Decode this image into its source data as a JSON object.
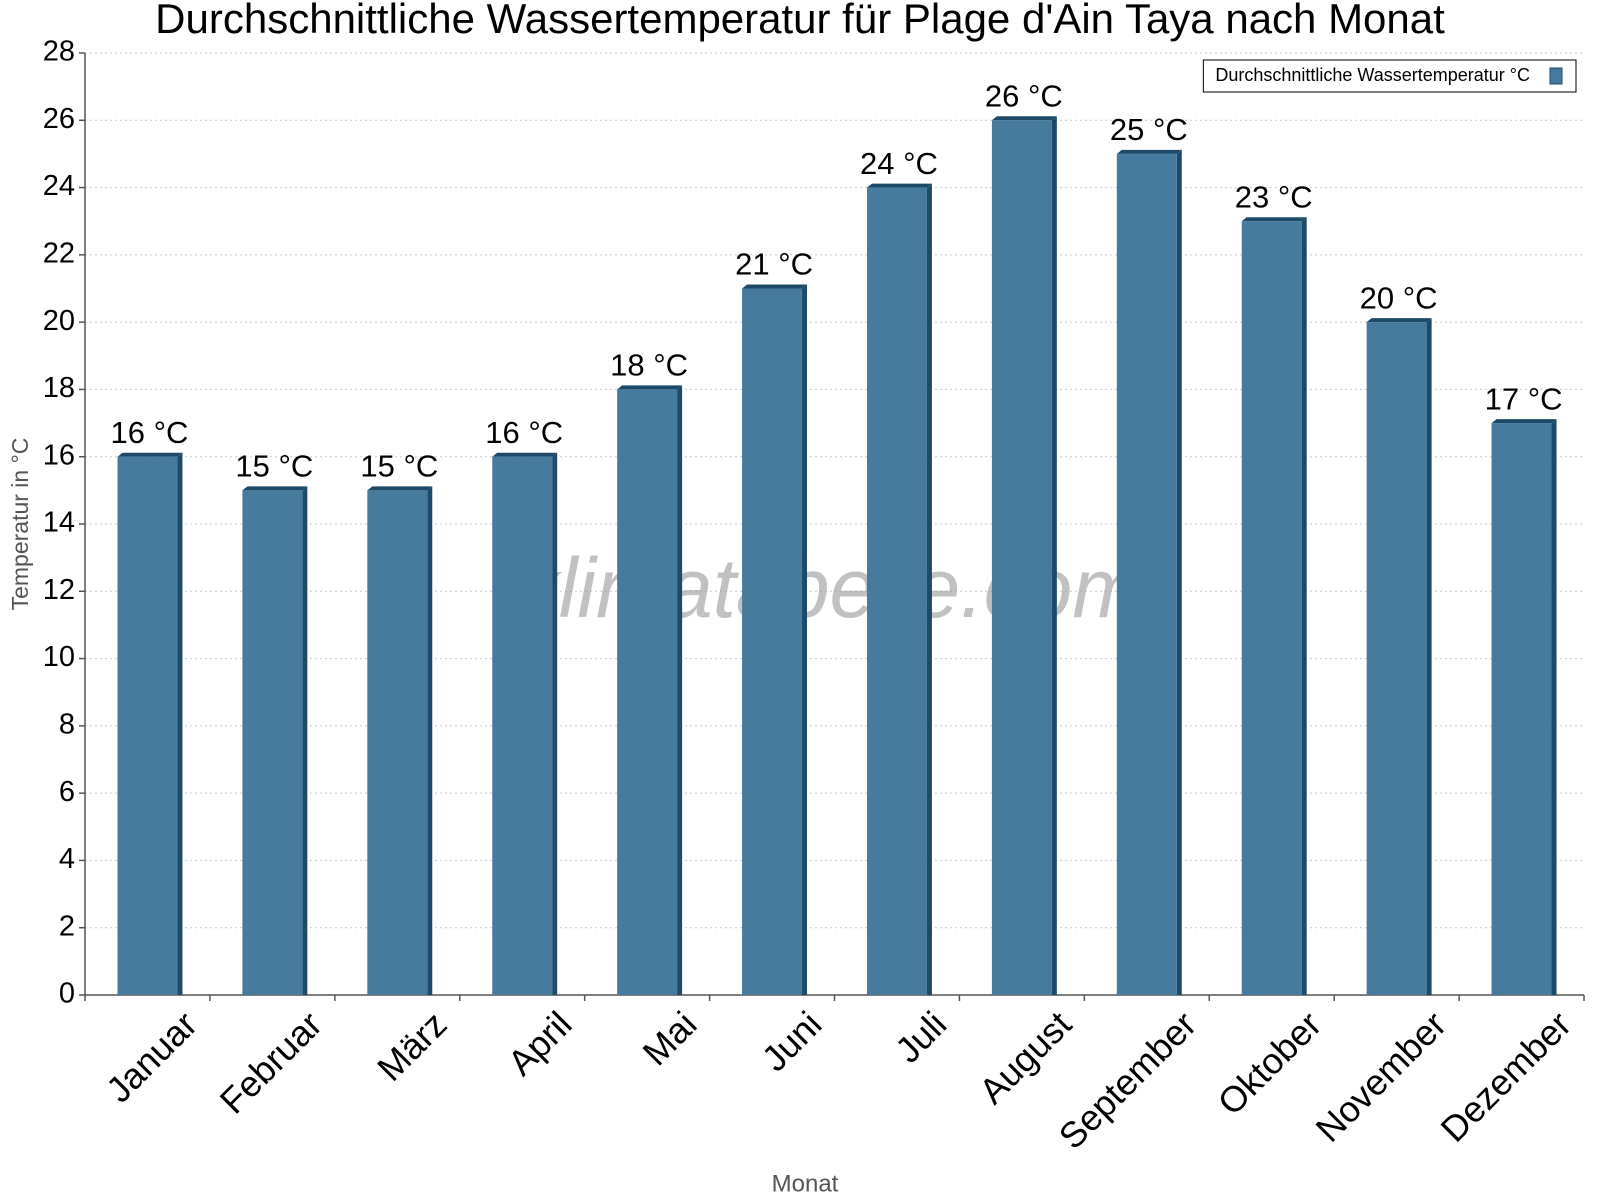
{
  "chart_data": {
    "type": "bar",
    "title": "Durchschnittliche Wassertemperatur für Plage d'Ain Taya nach Monat",
    "x_label": "Monat",
    "y_label": "Temperatur in °C",
    "watermark": "klimatabelle.com",
    "categories": [
      "Januar",
      "Februar",
      "März",
      "April",
      "Mai",
      "Juni",
      "Juli",
      "August",
      "September",
      "Oktober",
      "November",
      "Dezember"
    ],
    "series": [
      {
        "name": "Durchschnittliche Wassertemperatur °C",
        "color": "#467b9e",
        "values": [
          16,
          15,
          15,
          16,
          18,
          21,
          24,
          26,
          25,
          23,
          20,
          17
        ],
        "value_labels": [
          "16 °C",
          "15 °C",
          "15 °C",
          "16 °C",
          "18 °C",
          "21 °C",
          "24 °C",
          "26 °C",
          "25 °C",
          "23 °C",
          "20 °C",
          "17 °C"
        ]
      }
    ],
    "ylim": [
      0,
      28
    ],
    "yticks": [
      0,
      2,
      4,
      6,
      8,
      10,
      12,
      14,
      16,
      18,
      20,
      22,
      24,
      26,
      28
    ],
    "grid": true,
    "legend": "upper right"
  }
}
